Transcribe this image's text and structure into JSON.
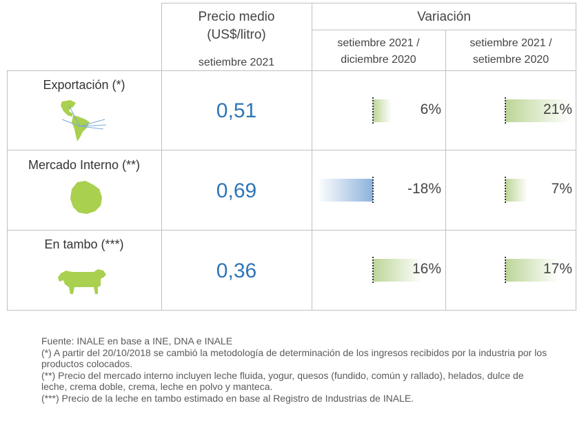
{
  "header": {
    "price_title": "Precio medio",
    "price_unit": "(US$/litro)",
    "price_period": "setiembre 2021",
    "variation_title": "Variación",
    "col1_line1": "setiembre 2021 /",
    "col1_line2": "diciembre 2020",
    "col2_line1": "setiembre 2021 /",
    "col2_line2": "setiembre 2020"
  },
  "rows": [
    {
      "label": "Exportación (*)",
      "icon": "americas-map-icon",
      "price": "0,51",
      "var_dec": {
        "text": "6%",
        "value": 6
      },
      "var_sep": {
        "text": "21%",
        "value": 21
      }
    },
    {
      "label": "Mercado Interno (**)",
      "icon": "uruguay-map-icon",
      "price": "0,69",
      "var_dec": {
        "text": "-18%",
        "value": -18
      },
      "var_sep": {
        "text": "7%",
        "value": 7
      }
    },
    {
      "label": "En tambo (***)",
      "icon": "cow-icon",
      "price": "0,36",
      "var_dec": {
        "text": "16%",
        "value": 16
      },
      "var_sep": {
        "text": "17%",
        "value": 17
      }
    }
  ],
  "footnotes": {
    "source": "Fuente: INALE en base a INE, DNA e INALE",
    "note1": "(*) A partir del 20/10/2018 se cambió la metodología de determinación de los ingresos recibidos por la industria por los productos colocados.",
    "note2": "(**) Precio del mercado interno incluyen leche fluida, yogur, quesos (fundido, común y rallado), helados, dulce de leche, crema doble, crema, leche en polvo y manteca.",
    "note3": "(***) Precio de la leche en tambo estimado en base al Registro de Industrias de INALE."
  },
  "colors": {
    "price": "#2e75b6",
    "positive_bar": "#bcd597",
    "negative_bar": "#8eb2dc",
    "icon_green": "#a9d04f"
  }
}
